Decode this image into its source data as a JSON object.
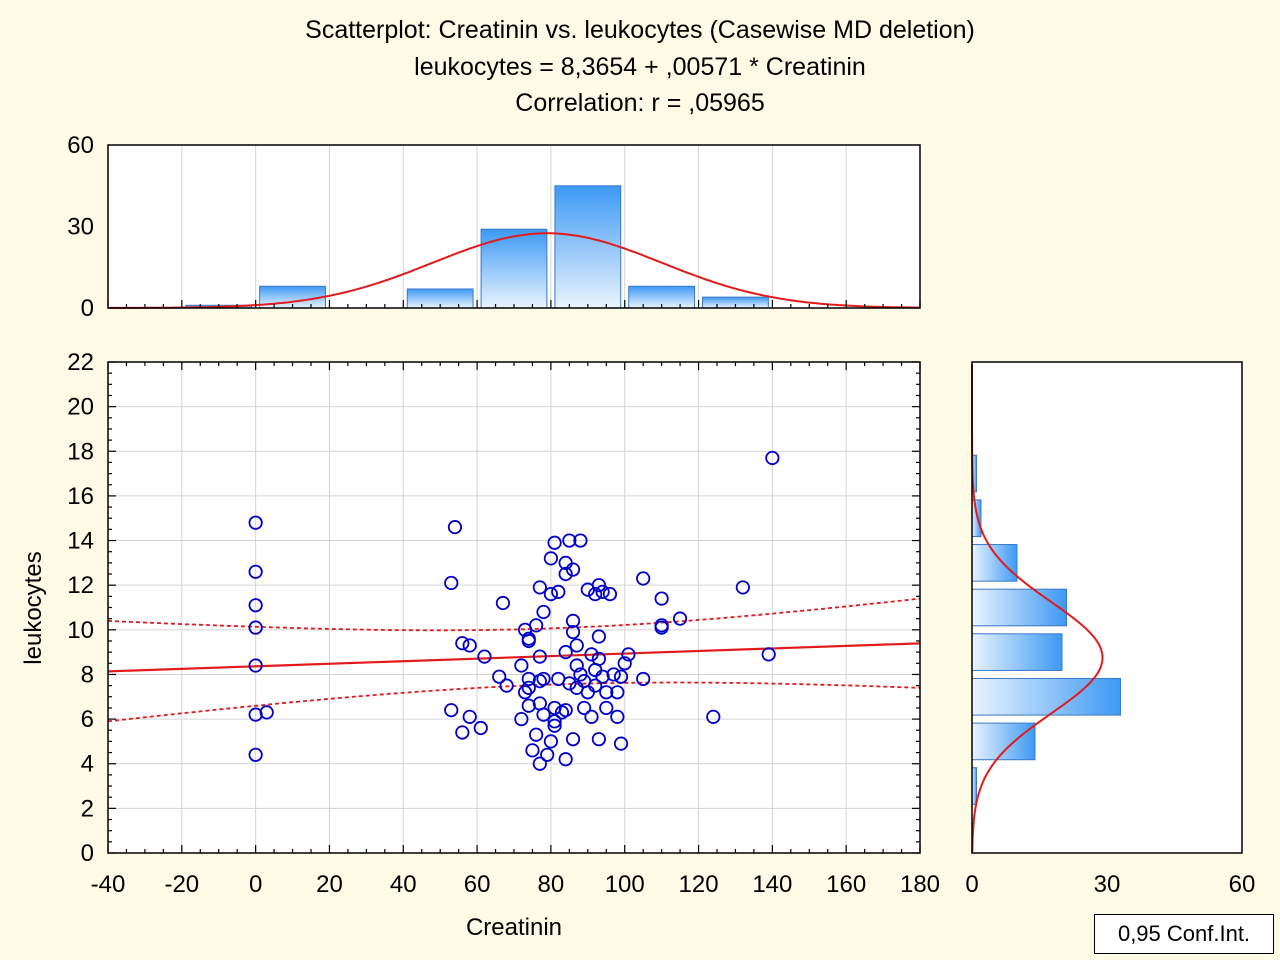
{
  "chart_data": {
    "type": "scatter",
    "title": "Scatterplot: Creatinin vs. leukocytes (Casewise MD deletion)",
    "subtitle": "leukocytes = 8,3654 + ,00571 * Creatinin",
    "correlation_text": "Correlation: r = ,05965",
    "xlabel": "Creatinin",
    "ylabel": "leukocytes",
    "xlim": [
      -40,
      180
    ],
    "ylim": [
      0,
      22
    ],
    "x_ticks": [
      "-40",
      "-20",
      "0",
      "20",
      "40",
      "60",
      "80",
      "100",
      "120",
      "140",
      "160",
      "180"
    ],
    "y_ticks": [
      "0",
      "2",
      "4",
      "6",
      "8",
      "10",
      "12",
      "14",
      "16",
      "18",
      "20",
      "22"
    ],
    "grid": true,
    "legend": "0,95 Conf.Int.",
    "regression": {
      "intercept": 8.3654,
      "slope": 0.00571,
      "color": "#e31a1c"
    },
    "ci_lower_at_xmin": 5.9,
    "ci_lower_at_xmax": 7.4,
    "ci_upper_at_xmin": 10.4,
    "ci_upper_at_xmax": 11.4,
    "point_color": "#0000cc",
    "points": [
      [
        0,
        14.8
      ],
      [
        0,
        12.6
      ],
      [
        0,
        11.1
      ],
      [
        0,
        10.1
      ],
      [
        0,
        8.4
      ],
      [
        0,
        6.2
      ],
      [
        3,
        6.3
      ],
      [
        0,
        4.4
      ],
      [
        54,
        14.6
      ],
      [
        53,
        12.1
      ],
      [
        53,
        6.4
      ],
      [
        56,
        9.4
      ],
      [
        58,
        9.3
      ],
      [
        58,
        6.1
      ],
      [
        56,
        5.4
      ],
      [
        61,
        5.6
      ],
      [
        62,
        8.8
      ],
      [
        67,
        11.2
      ],
      [
        66,
        7.9
      ],
      [
        68,
        7.5
      ],
      [
        72,
        8.4
      ],
      [
        72,
        6.0
      ],
      [
        73,
        10.0
      ],
      [
        73,
        7.2
      ],
      [
        74,
        9.6
      ],
      [
        74,
        9.5
      ],
      [
        74,
        7.8
      ],
      [
        74,
        7.4
      ],
      [
        74,
        6.6
      ],
      [
        75,
        4.6
      ],
      [
        76,
        10.2
      ],
      [
        76,
        5.3
      ],
      [
        77,
        11.9
      ],
      [
        77,
        8.8
      ],
      [
        77,
        7.7
      ],
      [
        77,
        6.7
      ],
      [
        77,
        4.0
      ],
      [
        78,
        10.8
      ],
      [
        78,
        7.8
      ],
      [
        78,
        6.2
      ],
      [
        79,
        4.4
      ],
      [
        80,
        13.2
      ],
      [
        80,
        11.6
      ],
      [
        80,
        5.0
      ],
      [
        81,
        13.9
      ],
      [
        81,
        6.5
      ],
      [
        81,
        5.9
      ],
      [
        81,
        5.7
      ],
      [
        82,
        11.7
      ],
      [
        82,
        7.8
      ],
      [
        83,
        6.3
      ],
      [
        84,
        13.0
      ],
      [
        84,
        12.5
      ],
      [
        84,
        9.0
      ],
      [
        84,
        6.4
      ],
      [
        84,
        4.2
      ],
      [
        85,
        14.0
      ],
      [
        85,
        7.6
      ],
      [
        86,
        12.7
      ],
      [
        86,
        10.4
      ],
      [
        86,
        9.9
      ],
      [
        86,
        5.1
      ],
      [
        87,
        9.3
      ],
      [
        87,
        8.4
      ],
      [
        87,
        7.4
      ],
      [
        88,
        14.0
      ],
      [
        88,
        8.0
      ],
      [
        89,
        7.7
      ],
      [
        89,
        6.5
      ],
      [
        90,
        11.8
      ],
      [
        90,
        7.2
      ],
      [
        91,
        8.9
      ],
      [
        91,
        6.1
      ],
      [
        92,
        11.6
      ],
      [
        92,
        8.2
      ],
      [
        92,
        7.5
      ],
      [
        93,
        12.0
      ],
      [
        93,
        9.7
      ],
      [
        93,
        8.7
      ],
      [
        93,
        5.1
      ],
      [
        94,
        11.7
      ],
      [
        94,
        7.9
      ],
      [
        95,
        7.2
      ],
      [
        95,
        6.5
      ],
      [
        96,
        11.6
      ],
      [
        97,
        8.0
      ],
      [
        98,
        7.2
      ],
      [
        98,
        6.1
      ],
      [
        99,
        7.9
      ],
      [
        99,
        4.9
      ],
      [
        100,
        8.5
      ],
      [
        101,
        8.9
      ],
      [
        105,
        12.3
      ],
      [
        105,
        7.8
      ],
      [
        110,
        11.4
      ],
      [
        110,
        10.2
      ],
      [
        110,
        10.1
      ],
      [
        115,
        10.5
      ],
      [
        124,
        6.1
      ],
      [
        132,
        11.9
      ],
      [
        139,
        8.9
      ],
      [
        140,
        17.7
      ]
    ],
    "x_hist": {
      "ylim": [
        0,
        60
      ],
      "ticks": [
        "0",
        "30",
        "60"
      ],
      "bins": [
        [
          -20,
          0,
          1
        ],
        [
          0,
          20,
          8
        ],
        [
          20,
          40,
          0
        ],
        [
          40,
          60,
          7
        ],
        [
          60,
          80,
          29
        ],
        [
          80,
          100,
          45
        ],
        [
          100,
          120,
          8
        ],
        [
          120,
          140,
          4
        ],
        [
          140,
          160,
          0
        ]
      ],
      "normal": {
        "mean": 79,
        "sd": 31,
        "peak": 27.5
      }
    },
    "y_hist": {
      "xlim": [
        0,
        60
      ],
      "ticks": [
        "0",
        "30",
        "60"
      ],
      "bins": [
        [
          0,
          2,
          0
        ],
        [
          2,
          4,
          1
        ],
        [
          4,
          6,
          14
        ],
        [
          6,
          8,
          33
        ],
        [
          8,
          10,
          20
        ],
        [
          10,
          12,
          21
        ],
        [
          12,
          14,
          10
        ],
        [
          14,
          16,
          2
        ],
        [
          16,
          18,
          1
        ],
        [
          18,
          20,
          0
        ],
        [
          20,
          22,
          0
        ]
      ],
      "normal": {
        "mean": 8.75,
        "sd": 2.5,
        "peak": 29
      }
    }
  }
}
